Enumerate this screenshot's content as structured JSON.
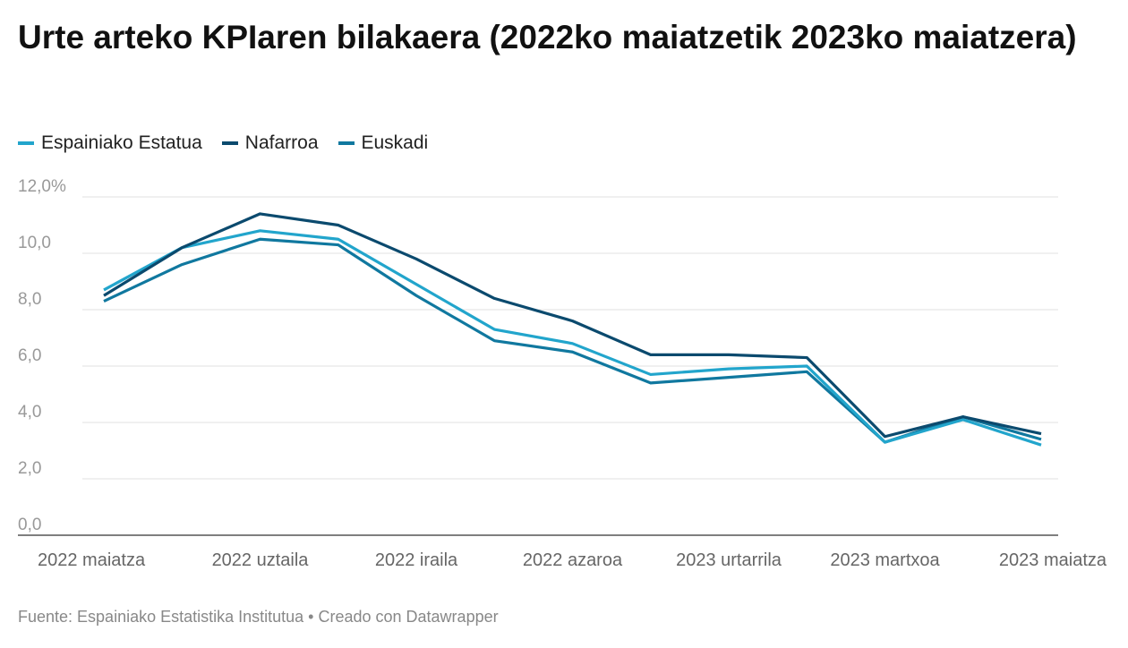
{
  "title": "Urte arteko KPIaren bilakaera (2022ko maiatzetik 2023ko maiatzera)",
  "footer": "Fuente: Espainiako Estatistika Institutua • Creado con Datawrapper",
  "chart_data": {
    "type": "line",
    "title": "Urte arteko KPIaren bilakaera (2022ko maiatzetik 2023ko maiatzera)",
    "x": [
      "2022-05",
      "2022-06",
      "2022-07",
      "2022-08",
      "2022-09",
      "2022-10",
      "2022-11",
      "2022-12",
      "2023-01",
      "2023-02",
      "2023-03",
      "2023-04",
      "2023-05"
    ],
    "x_tick_labels": [
      "2022 maiatza",
      "2022 uztaila",
      "2022 iraila",
      "2022 azaroa",
      "2023 urtarrila",
      "2023 martxoa",
      "2023 maiatza"
    ],
    "y_tick_labels": [
      "0,0",
      "2,0",
      "4,0",
      "6,0",
      "8,0",
      "10,0",
      "12,0%"
    ],
    "ylim": [
      0,
      12
    ],
    "grid": true,
    "legend": "top-left",
    "series": [
      {
        "name": "Espainiako Estatua",
        "color": "#22a5cc",
        "values": [
          8.7,
          10.2,
          10.8,
          10.5,
          8.9,
          7.3,
          6.8,
          5.7,
          5.9,
          6.0,
          3.3,
          4.1,
          3.2
        ]
      },
      {
        "name": "Nafarroa",
        "color": "#0b4a6e",
        "values": [
          8.5,
          10.2,
          11.4,
          11.0,
          9.8,
          8.4,
          7.6,
          6.4,
          6.4,
          6.3,
          3.5,
          4.2,
          3.6
        ]
      },
      {
        "name": "Euskadi",
        "color": "#10789f",
        "values": [
          8.3,
          9.6,
          10.5,
          10.3,
          8.5,
          6.9,
          6.5,
          5.4,
          5.6,
          5.8,
          3.3,
          4.2,
          3.4
        ]
      }
    ]
  }
}
